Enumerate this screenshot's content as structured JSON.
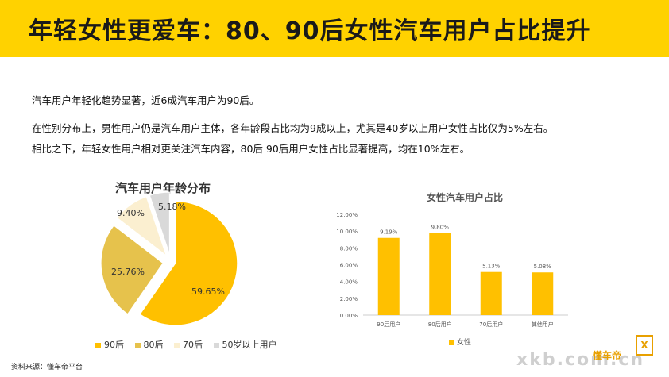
{
  "header": {
    "title": "年轻女性更爱车：80、90后女性汽车用户占比提升"
  },
  "body": {
    "p1": "汽车用户年轻化趋势显著，近6成汽车用户为90后。",
    "p2": "在性别分布上，男性用户仍是汽车用户主体，各年龄段占比均为9成以上，尤其是40岁以上用户女性占比仅为5%左右。",
    "p3": "相比之下，年轻女性用户相对更关注汽车内容，80后 90后用户女性占比显著提高，均在10%左右。"
  },
  "chart_data": [
    {
      "type": "pie",
      "title": "汽车用户年龄分布",
      "slices": [
        {
          "label": "90后",
          "value": 59.65,
          "display": "59.65%",
          "color": "#ffc000"
        },
        {
          "label": "80后",
          "value": 25.76,
          "display": "25.76%",
          "color": "#e6c24c"
        },
        {
          "label": "70后",
          "value": 9.4,
          "display": "9.40%",
          "color": "#fbefd0"
        },
        {
          "label": "50岁以上用户",
          "value": 5.18,
          "display": "5.18%",
          "color": "#d9d9d9"
        }
      ],
      "legend_position": "bottom"
    },
    {
      "type": "bar",
      "title": "女性汽车用户占比",
      "categories": [
        "90后用户",
        "80后用户",
        "70后用户",
        "其他用户"
      ],
      "series": [
        {
          "name": "女性",
          "values": [
            9.19,
            9.8,
            5.13,
            5.08
          ],
          "labels": [
            "9.19%",
            "9.80%",
            "5.13%",
            "5.08%"
          ],
          "color": "#ffc000"
        }
      ],
      "ylim": [
        0,
        12
      ],
      "yticks": [
        "0.00%",
        "2.00%",
        "4.00%",
        "6.00%",
        "8.00%",
        "10.00%",
        "12.00%"
      ],
      "grid": false,
      "legend_position": "bottom"
    }
  ],
  "footer": {
    "source": "资料来源：懂车帝平台",
    "watermark": "xkb.com.cn",
    "logo": "懂车帝",
    "badge": "X"
  }
}
